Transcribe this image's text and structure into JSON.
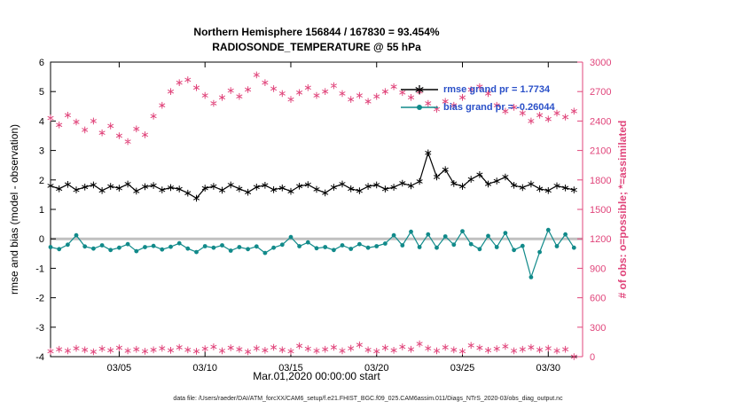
{
  "figure": {
    "title": "Northern Hemisphere 156844 / 167830 = 93.454%",
    "subtitle": "RADIOSONDE_TEMPERATURE @ 55 hPa",
    "x_axis_label": "Mar.01,2020 00:00:00 start",
    "left_axis_label": "rmse and bias (model - observation)",
    "right_axis_label": "# of obs: o=possible; *=assimilated",
    "data_file_note": "data file: /Users/raeder/DAI/ATM_forcXX/CAM6_setup/f.e21.FHIST_BGC.f09_025.CAM6assim.011/Diags_NTrS_2020-03/obs_diag_output.nc"
  },
  "legend": {
    "rmse_label": "rmse grand pr = 1.7734",
    "bias_label": "bias grand pr = -0.26044",
    "text_color": "#2a50c8"
  },
  "colors": {
    "rmse_black": "#000000",
    "bias_teal": "#118a8a",
    "obs_pink": "#e0457b",
    "zero_line_gray": "#c0c0c0",
    "axis_black": "#000000"
  },
  "chart_data": {
    "type": "line",
    "title": "Northern Hemisphere 156844 / 167830 = 93.454%",
    "subtitle": "RADIOSONDE_TEMPERATURE @ 55 hPa",
    "xlabel": "Mar.01,2020 00:00:00 start",
    "ylabel_left": "rmse and bias (model - observation)",
    "ylabel_right": "# of obs: o=possible; *=assimilated",
    "xlim": [
      0,
      31
    ],
    "ylim_left": [
      -4,
      6
    ],
    "ylim_right": [
      0,
      3000
    ],
    "yticks_left": [
      -4,
      -3,
      -2,
      -1,
      0,
      1,
      2,
      3,
      4,
      5,
      6
    ],
    "yticks_right": [
      0,
      300,
      600,
      900,
      1200,
      1500,
      1800,
      2100,
      2400,
      2700,
      3000
    ],
    "xticks": [
      {
        "day": 4,
        "label": "03/05"
      },
      {
        "day": 9,
        "label": "03/10"
      },
      {
        "day": 14,
        "label": "03/15"
      },
      {
        "day": 19,
        "label": "03/20"
      },
      {
        "day": 24,
        "label": "03/25"
      },
      {
        "day": 29,
        "label": "03/30"
      }
    ],
    "zero_line": {
      "value": 0,
      "color": "#c0c0c0"
    },
    "x_days": [
      0,
      0.5,
      1,
      1.5,
      2,
      2.5,
      3,
      3.5,
      4,
      4.5,
      5,
      5.5,
      6,
      6.5,
      7,
      7.5,
      8,
      8.5,
      9,
      9.5,
      10,
      10.5,
      11,
      11.5,
      12,
      12.5,
      13,
      13.5,
      14,
      14.5,
      15,
      15.5,
      16,
      16.5,
      17,
      17.5,
      18,
      18.5,
      19,
      19.5,
      20,
      20.5,
      21,
      21.5,
      22,
      22.5,
      23,
      23.5,
      24,
      24.5,
      25,
      25.5,
      26,
      26.5,
      27,
      27.5,
      28,
      28.5,
      29,
      29.5,
      30,
      30.5
    ],
    "series": [
      {
        "name": "rmse",
        "grand_mean": 1.7734,
        "axis": "left",
        "color": "#000000",
        "marker": "asterisk",
        "line": true,
        "values": [
          1.8,
          1.7,
          1.85,
          1.66,
          1.76,
          1.83,
          1.64,
          1.78,
          1.72,
          1.86,
          1.62,
          1.77,
          1.81,
          1.66,
          1.74,
          1.69,
          1.55,
          1.38,
          1.72,
          1.78,
          1.65,
          1.83,
          1.7,
          1.58,
          1.76,
          1.82,
          1.67,
          1.73,
          1.61,
          1.79,
          1.84,
          1.68,
          1.56,
          1.75,
          1.86,
          1.7,
          1.63,
          1.78,
          1.83,
          1.69,
          1.75,
          1.89,
          1.8,
          1.95,
          2.92,
          2.1,
          2.35,
          1.88,
          1.78,
          2.02,
          2.18,
          1.86,
          1.96,
          2.1,
          1.82,
          1.74,
          1.86,
          1.7,
          1.64,
          1.8,
          1.73,
          1.66
        ]
      },
      {
        "name": "bias",
        "grand_mean": -0.26044,
        "axis": "left",
        "color": "#118a8a",
        "marker": "circle",
        "line": true,
        "values": [
          -0.28,
          -0.35,
          -0.2,
          0.12,
          -0.26,
          -0.33,
          -0.22,
          -0.38,
          -0.3,
          -0.18,
          -0.42,
          -0.28,
          -0.24,
          -0.36,
          -0.27,
          -0.15,
          -0.33,
          -0.45,
          -0.25,
          -0.3,
          -0.22,
          -0.4,
          -0.28,
          -0.35,
          -0.26,
          -0.48,
          -0.3,
          -0.2,
          0.06,
          -0.25,
          -0.12,
          -0.32,
          -0.28,
          -0.38,
          -0.22,
          -0.34,
          -0.18,
          -0.3,
          -0.25,
          -0.16,
          0.12,
          -0.22,
          0.24,
          -0.28,
          0.15,
          -0.3,
          0.08,
          -0.2,
          0.26,
          -0.18,
          -0.35,
          0.1,
          -0.28,
          0.2,
          -0.38,
          -0.24,
          -1.3,
          -0.45,
          0.3,
          -0.25,
          0.15,
          -0.3
        ]
      },
      {
        "name": "obs_count_upper_band",
        "axis": "right",
        "color": "#e0457b",
        "marker": "asterisk",
        "line": false,
        "values": [
          2430,
          2360,
          2460,
          2390,
          2310,
          2400,
          2280,
          2350,
          2250,
          2190,
          2320,
          2260,
          2450,
          2560,
          2700,
          2790,
          2820,
          2740,
          2660,
          2580,
          2640,
          2710,
          2650,
          2720,
          2870,
          2790,
          2730,
          2680,
          2620,
          2690,
          2740,
          2660,
          2700,
          2760,
          2680,
          2620,
          2660,
          2600,
          2650,
          2700,
          2750,
          2690,
          2640,
          2700,
          2580,
          2520,
          2600,
          2560,
          2640,
          2720,
          2750,
          2680,
          2560,
          2500,
          2540,
          2480,
          2400,
          2460,
          2420,
          2480,
          2440,
          2500
        ]
      },
      {
        "name": "obs_count_lower_band",
        "axis": "right",
        "color": "#e0457b",
        "marker": "asterisk",
        "line": false,
        "values": [
          55,
          75,
          60,
          85,
          70,
          50,
          80,
          65,
          90,
          60,
          75,
          55,
          70,
          85,
          65,
          95,
          70,
          55,
          80,
          100,
          60,
          90,
          75,
          50,
          85,
          65,
          95,
          70,
          55,
          110,
          80,
          60,
          75,
          95,
          60,
          85,
          120,
          70,
          55,
          90,
          65,
          100,
          75,
          130,
          85,
          60,
          95,
          70,
          55,
          115,
          90,
          65,
          80,
          105,
          60,
          75,
          95,
          70,
          85,
          60,
          75,
          0
        ]
      }
    ]
  }
}
